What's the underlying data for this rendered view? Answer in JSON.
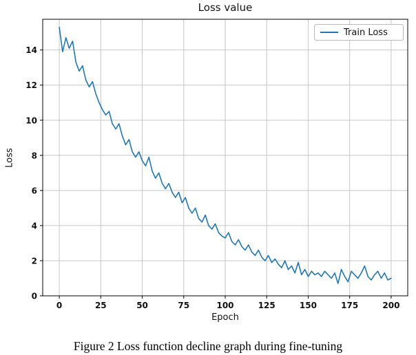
{
  "figure": {
    "caption": "Figure 2 Loss function decline graph during fine-tuning"
  },
  "chart_data": {
    "type": "line",
    "title": "Loss value",
    "xlabel": "Epoch",
    "ylabel": "Loss",
    "grid": true,
    "legend_position": "upper right",
    "xlim": [
      -10,
      210
    ],
    "ylim": [
      0,
      15.75
    ],
    "x_ticks": [
      0,
      25,
      50,
      75,
      100,
      125,
      150,
      175,
      200
    ],
    "y_ticks": [
      0,
      2,
      4,
      6,
      8,
      10,
      12,
      14
    ],
    "series": [
      {
        "name": "Train Loss",
        "color": "#1f77b4",
        "x": [
          0,
          2,
          4,
          6,
          8,
          10,
          12,
          14,
          16,
          18,
          20,
          22,
          24,
          26,
          28,
          30,
          32,
          34,
          36,
          38,
          40,
          42,
          44,
          46,
          48,
          50,
          52,
          54,
          56,
          58,
          60,
          62,
          64,
          66,
          68,
          70,
          72,
          74,
          76,
          78,
          80,
          82,
          84,
          86,
          88,
          90,
          92,
          94,
          96,
          98,
          100,
          102,
          104,
          106,
          108,
          110,
          112,
          114,
          116,
          118,
          120,
          122,
          124,
          126,
          128,
          130,
          132,
          134,
          136,
          138,
          140,
          142,
          144,
          146,
          148,
          150,
          152,
          154,
          156,
          158,
          160,
          162,
          164,
          166,
          168,
          170,
          172,
          174,
          176,
          178,
          180,
          182,
          184,
          186,
          188,
          190,
          192,
          194,
          196,
          198,
          200
        ],
        "y": [
          15.3,
          13.9,
          14.7,
          14.1,
          14.5,
          13.3,
          12.8,
          13.1,
          12.3,
          11.9,
          12.2,
          11.5,
          11.0,
          10.6,
          10.3,
          10.5,
          9.8,
          9.5,
          9.8,
          9.1,
          8.6,
          8.9,
          8.2,
          7.9,
          8.2,
          7.7,
          7.4,
          7.9,
          7.1,
          6.7,
          7.0,
          6.4,
          6.1,
          6.4,
          5.9,
          5.6,
          5.9,
          5.3,
          5.6,
          5.0,
          4.7,
          5.0,
          4.4,
          4.2,
          4.6,
          4.0,
          3.8,
          4.1,
          3.6,
          3.4,
          3.3,
          3.6,
          3.1,
          2.9,
          3.2,
          2.8,
          2.6,
          2.9,
          2.5,
          2.3,
          2.6,
          2.2,
          2.0,
          2.3,
          1.9,
          2.1,
          1.8,
          1.6,
          2.0,
          1.5,
          1.7,
          1.3,
          1.9,
          1.2,
          1.5,
          1.1,
          1.4,
          1.2,
          1.3,
          1.1,
          1.4,
          1.2,
          1.0,
          1.3,
          0.7,
          1.5,
          1.1,
          0.8,
          1.4,
          1.2,
          1.0,
          1.3,
          1.7,
          1.1,
          0.9,
          1.2,
          1.4,
          1.0,
          1.3,
          0.9,
          1.0
        ]
      }
    ],
    "colors": {
      "line": "#1f77b4",
      "grid": "#c6c6c6",
      "axis": "#000000"
    }
  }
}
